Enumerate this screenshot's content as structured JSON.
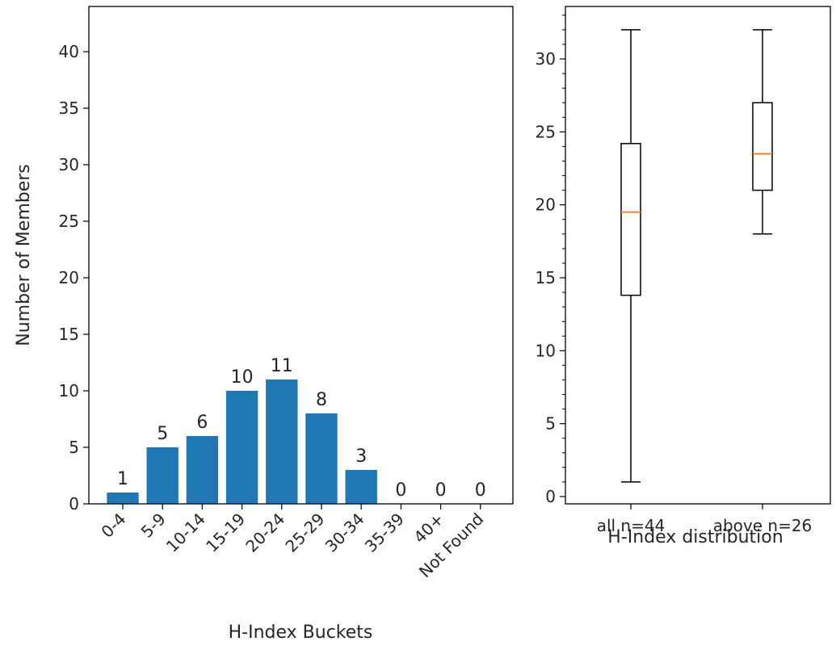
{
  "chart_data": [
    {
      "type": "bar",
      "xlabel": "H-Index Buckets",
      "ylabel": "Number of Members",
      "categories": [
        "0-4",
        "5-9",
        "10-14",
        "15-19",
        "20-24",
        "25-29",
        "30-34",
        "35-39",
        "40+",
        "Not Found"
      ],
      "values": [
        1,
        5,
        6,
        10,
        11,
        8,
        3,
        0,
        0,
        0
      ],
      "data_labels": [
        "1",
        "5",
        "6",
        "10",
        "11",
        "8",
        "3",
        "0",
        "0",
        "0"
      ],
      "ylim": [
        0,
        44
      ],
      "yticks": [
        0,
        5,
        10,
        15,
        20,
        25,
        30,
        35,
        40
      ],
      "color": "#1f77b4",
      "grid": false
    },
    {
      "type": "box",
      "xlabel": "H-Index distribution",
      "ylabel": "",
      "categories": [
        "all n=44",
        "above n=26"
      ],
      "boxes": [
        {
          "name": "all n=44",
          "whisker_low": 1,
          "q1": 13.8,
          "median": 19.5,
          "q3": 24.2,
          "whisker_high": 32
        },
        {
          "name": "above n=26",
          "whisker_low": 18,
          "q1": 21,
          "median": 23.5,
          "q3": 27,
          "whisker_high": 32
        }
      ],
      "ylim": [
        -0.5,
        33.6
      ],
      "yticks": [
        0,
        5,
        10,
        15,
        20,
        25,
        30
      ],
      "median_color": "#ff7f0e",
      "grid": false
    }
  ]
}
